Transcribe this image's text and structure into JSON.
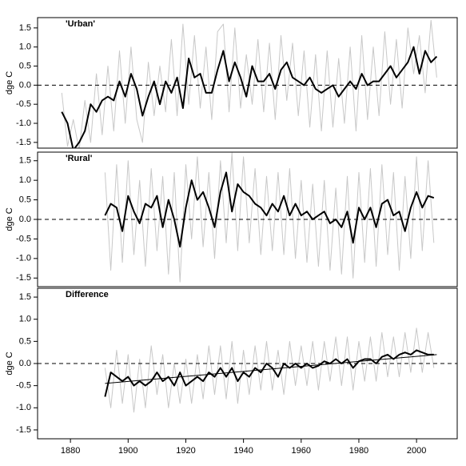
{
  "chart_data": [
    {
      "type": "line",
      "title": "'Urban'",
      "y_label": "dge C",
      "xlim": [
        1868.6,
        2014.1
      ],
      "ylim": [
        -1.65,
        1.77
      ],
      "yticks": [
        {
          "value": -1.5,
          "label": "-1.5"
        },
        {
          "value": -1,
          "label": "-1.0"
        },
        -0.5,
        {
          "value": 0,
          "label": "0.0"
        },
        0.5,
        {
          "value": 1,
          "label": "1.0"
        },
        1.5
      ],
      "reference_line": 0,
      "series": [
        {
          "color": "#c8c8c8",
          "x": [
            1877,
            1879,
            1881,
            1883,
            1885,
            1887,
            1889,
            1891,
            1893,
            1895,
            1897,
            1899,
            1901,
            1903,
            1905,
            1907,
            1909,
            1911,
            1913,
            1915,
            1917,
            1919,
            1921,
            1923,
            1925,
            1927,
            1929,
            1931,
            1933,
            1935,
            1937,
            1939,
            1941,
            1943,
            1945,
            1947,
            1949,
            1951,
            1953,
            1955,
            1957,
            1959,
            1961,
            1963,
            1965,
            1967,
            1969,
            1971,
            1973,
            1975,
            1977,
            1979,
            1981,
            1983,
            1985,
            1987,
            1989,
            1991,
            1993,
            1995,
            1997,
            1999,
            2001,
            2003,
            2005,
            2007
          ],
          "values": [
            -0.2,
            -1.6,
            -0.9,
            -1.7,
            -0.4,
            -1.5,
            0.3,
            -1.3,
            0.5,
            -1.2,
            0.9,
            -1.0,
            1.0,
            -0.9,
            -1.5,
            0.6,
            -0.8,
            0.5,
            -0.7,
            1.2,
            -0.8,
            1.6,
            -0.5,
            1.3,
            -0.6,
            1.0,
            -0.9,
            1.4,
            1.6,
            -0.7,
            1.5,
            -0.6,
            0.8,
            -0.5,
            1.2,
            -0.7,
            1.1,
            -0.9,
            1.3,
            -0.4,
            1.1,
            -0.8,
            0.9,
            -1.1,
            0.8,
            -1.2,
            0.9,
            -1.1,
            0.7,
            -1.0,
            1.0,
            -1.2,
            1.3,
            -0.9,
            1.0,
            -0.8,
            1.4,
            -0.5,
            1.2,
            -0.6,
            1.5,
            0.3,
            1.3,
            -0.2,
            1.7,
            0.2
          ]
        },
        {
          "color": "#000000",
          "x": [
            1877,
            1879,
            1881,
            1883,
            1885,
            1887,
            1889,
            1891,
            1893,
            1895,
            1897,
            1899,
            1901,
            1903,
            1905,
            1907,
            1909,
            1911,
            1913,
            1915,
            1917,
            1919,
            1921,
            1923,
            1925,
            1927,
            1929,
            1931,
            1933,
            1935,
            1937,
            1939,
            1941,
            1943,
            1945,
            1947,
            1949,
            1951,
            1953,
            1955,
            1957,
            1959,
            1961,
            1963,
            1965,
            1967,
            1969,
            1971,
            1973,
            1975,
            1977,
            1979,
            1981,
            1983,
            1985,
            1987,
            1989,
            1991,
            1993,
            1995,
            1997,
            1999,
            2001,
            2003,
            2005,
            2007
          ],
          "values": [
            -0.7,
            -1.0,
            -1.7,
            -1.5,
            -1.2,
            -0.5,
            -0.7,
            -0.4,
            -0.3,
            -0.4,
            0.1,
            -0.3,
            0.3,
            -0.1,
            -0.8,
            -0.3,
            0.1,
            -0.5,
            0.1,
            -0.2,
            0.2,
            -0.6,
            0.7,
            0.2,
            0.3,
            -0.2,
            -0.2,
            0.4,
            0.9,
            0.1,
            0.6,
            0.2,
            -0.3,
            0.5,
            0.1,
            0.1,
            0.3,
            -0.1,
            0.4,
            0.6,
            0.2,
            0.1,
            0.0,
            0.2,
            -0.1,
            -0.2,
            -0.1,
            0.0,
            -0.3,
            -0.1,
            0.1,
            -0.1,
            0.3,
            0.0,
            0.1,
            0.1,
            0.3,
            0.5,
            0.2,
            0.4,
            0.6,
            1.0,
            0.3,
            0.9,
            0.6,
            0.75
          ]
        }
      ]
    },
    {
      "type": "line",
      "title": "'Rural'",
      "y_label": "dge C",
      "xlim": [
        1868.6,
        2014.1
      ],
      "ylim": [
        -1.72,
        1.72
      ],
      "yticks": [
        {
          "value": -1.5,
          "label": "-1.5"
        },
        {
          "value": -1,
          "label": "-1.0"
        },
        -0.5,
        {
          "value": 0,
          "label": "0.0"
        },
        0.5,
        {
          "value": 1,
          "label": "1.0"
        },
        1.5
      ],
      "reference_line": 0,
      "series": [
        {
          "color": "#c8c8c8",
          "x": [
            1892,
            1894,
            1896,
            1898,
            1900,
            1902,
            1904,
            1906,
            1908,
            1910,
            1912,
            1914,
            1916,
            1918,
            1920,
            1922,
            1924,
            1926,
            1928,
            1930,
            1932,
            1934,
            1936,
            1938,
            1940,
            1942,
            1944,
            1946,
            1948,
            1950,
            1952,
            1954,
            1956,
            1958,
            1960,
            1962,
            1964,
            1966,
            1968,
            1970,
            1972,
            1974,
            1976,
            1978,
            1980,
            1982,
            1984,
            1986,
            1988,
            1990,
            1992,
            1994,
            1996,
            1998,
            2000,
            2002,
            2004,
            2006
          ],
          "values": [
            1.2,
            -1.3,
            1.4,
            -1.1,
            1.5,
            -0.9,
            1.0,
            -1.2,
            1.3,
            -0.8,
            1.1,
            -1.4,
            1.2,
            -1.6,
            1.4,
            -0.5,
            1.6,
            -0.7,
            1.2,
            -1.0,
            1.5,
            -0.6,
            1.7,
            -0.8,
            1.6,
            -0.6,
            1.3,
            -0.9,
            1.1,
            -0.8,
            1.2,
            -0.9,
            1.3,
            -1.0,
            1.0,
            -1.1,
            0.9,
            -1.2,
            1.0,
            -1.3,
            0.8,
            -1.4,
            1.1,
            -1.5,
            1.2,
            -1.1,
            1.3,
            -1.2,
            1.4,
            -0.9,
            1.2,
            -1.3,
            1.1,
            -1.0,
            1.6,
            -0.8,
            1.5,
            -0.6
          ]
        },
        {
          "color": "#000000",
          "x": [
            1892,
            1894,
            1896,
            1898,
            1900,
            1902,
            1904,
            1906,
            1908,
            1910,
            1912,
            1914,
            1916,
            1918,
            1920,
            1922,
            1924,
            1926,
            1928,
            1930,
            1932,
            1934,
            1936,
            1938,
            1940,
            1942,
            1944,
            1946,
            1948,
            1950,
            1952,
            1954,
            1956,
            1958,
            1960,
            1962,
            1964,
            1966,
            1968,
            1970,
            1972,
            1974,
            1976,
            1978,
            1980,
            1982,
            1984,
            1986,
            1988,
            1990,
            1992,
            1994,
            1996,
            1998,
            2000,
            2002,
            2004,
            2006
          ],
          "values": [
            0.1,
            0.4,
            0.3,
            -0.3,
            0.6,
            0.2,
            -0.1,
            0.4,
            0.3,
            0.6,
            -0.2,
            0.5,
            0.0,
            -0.7,
            0.3,
            1.0,
            0.5,
            0.7,
            0.3,
            -0.2,
            0.7,
            1.2,
            0.2,
            0.9,
            0.7,
            0.6,
            0.4,
            0.3,
            0.1,
            0.4,
            0.2,
            0.6,
            0.1,
            0.4,
            0.1,
            0.2,
            0.0,
            0.1,
            0.2,
            -0.1,
            0.0,
            -0.2,
            0.2,
            -0.6,
            0.3,
            0.0,
            0.3,
            -0.2,
            0.4,
            0.5,
            0.1,
            0.2,
            -0.3,
            0.3,
            0.7,
            0.3,
            0.6,
            0.55
          ]
        }
      ]
    },
    {
      "type": "line",
      "title": "Difference",
      "y_label": "dge C",
      "xlim": [
        1868.6,
        2014.1
      ],
      "ylim": [
        -1.7,
        1.7
      ],
      "yticks": [
        {
          "value": -1.5,
          "label": "-1.5"
        },
        {
          "value": -1,
          "label": "-1.0"
        },
        -0.5,
        {
          "value": 0,
          "label": "0.0"
        },
        0.5,
        {
          "value": 1,
          "label": "1.0"
        },
        1.5
      ],
      "xticks": [
        1880,
        1900,
        1920,
        1940,
        1960,
        1980,
        2000
      ],
      "reference_line": 0,
      "series": [
        {
          "color": "#c8c8c8",
          "x": [
            1892,
            1894,
            1896,
            1898,
            1900,
            1902,
            1904,
            1906,
            1908,
            1910,
            1912,
            1914,
            1916,
            1918,
            1920,
            1922,
            1924,
            1926,
            1928,
            1930,
            1932,
            1934,
            1936,
            1938,
            1940,
            1942,
            1944,
            1946,
            1948,
            1950,
            1952,
            1954,
            1956,
            1958,
            1960,
            1962,
            1964,
            1966,
            1968,
            1970,
            1972,
            1974,
            1976,
            1978,
            1980,
            1982,
            1984,
            1986,
            1988,
            1990,
            1992,
            1994,
            1996,
            1998,
            2000,
            2002,
            2004,
            2006
          ],
          "values": [
            -0.1,
            -1.0,
            0.3,
            -0.9,
            0.2,
            -1.1,
            0.1,
            -1.0,
            0.4,
            -0.7,
            0.2,
            -1.0,
            0.0,
            -0.9,
            0.1,
            -0.9,
            0.2,
            -0.8,
            0.4,
            -0.7,
            0.4,
            -0.8,
            0.5,
            -0.9,
            0.3,
            -0.7,
            0.4,
            -0.6,
            0.5,
            -0.6,
            0.3,
            -0.7,
            0.5,
            -0.5,
            0.4,
            -0.5,
            0.5,
            -0.6,
            0.5,
            -0.4,
            0.6,
            -0.5,
            0.6,
            -0.6,
            0.5,
            -0.4,
            0.6,
            -0.4,
            0.7,
            -0.3,
            0.6,
            -0.3,
            0.7,
            -0.2,
            0.8,
            -0.2,
            0.7,
            -0.1
          ]
        },
        {
          "color": "#000000",
          "x": [
            1892,
            1894,
            1896,
            1898,
            1900,
            1902,
            1904,
            1906,
            1908,
            1910,
            1912,
            1914,
            1916,
            1918,
            1920,
            1922,
            1924,
            1926,
            1928,
            1930,
            1932,
            1934,
            1936,
            1938,
            1940,
            1942,
            1944,
            1946,
            1948,
            1950,
            1952,
            1954,
            1956,
            1958,
            1960,
            1962,
            1964,
            1966,
            1968,
            1970,
            1972,
            1974,
            1976,
            1978,
            1980,
            1982,
            1984,
            1986,
            1988,
            1990,
            1992,
            1994,
            1996,
            1998,
            2000,
            2002,
            2004,
            2006
          ],
          "values": [
            -0.75,
            -0.2,
            -0.3,
            -0.4,
            -0.3,
            -0.5,
            -0.4,
            -0.5,
            -0.4,
            -0.2,
            -0.4,
            -0.3,
            -0.5,
            -0.2,
            -0.5,
            -0.4,
            -0.3,
            -0.4,
            -0.2,
            -0.3,
            -0.1,
            -0.3,
            -0.1,
            -0.4,
            -0.2,
            -0.3,
            -0.1,
            -0.2,
            0.0,
            -0.1,
            -0.3,
            0.0,
            -0.1,
            0.0,
            -0.1,
            0.0,
            -0.1,
            -0.05,
            0.05,
            0.0,
            0.1,
            0.0,
            0.1,
            -0.1,
            0.05,
            0.1,
            0.1,
            0.0,
            0.15,
            0.2,
            0.1,
            0.2,
            0.25,
            0.2,
            0.3,
            0.25,
            0.2,
            0.2
          ]
        },
        {
          "color": "#000000",
          "x": [
            1892,
            2007
          ],
          "values": [
            -0.45,
            0.2
          ]
        }
      ]
    }
  ]
}
